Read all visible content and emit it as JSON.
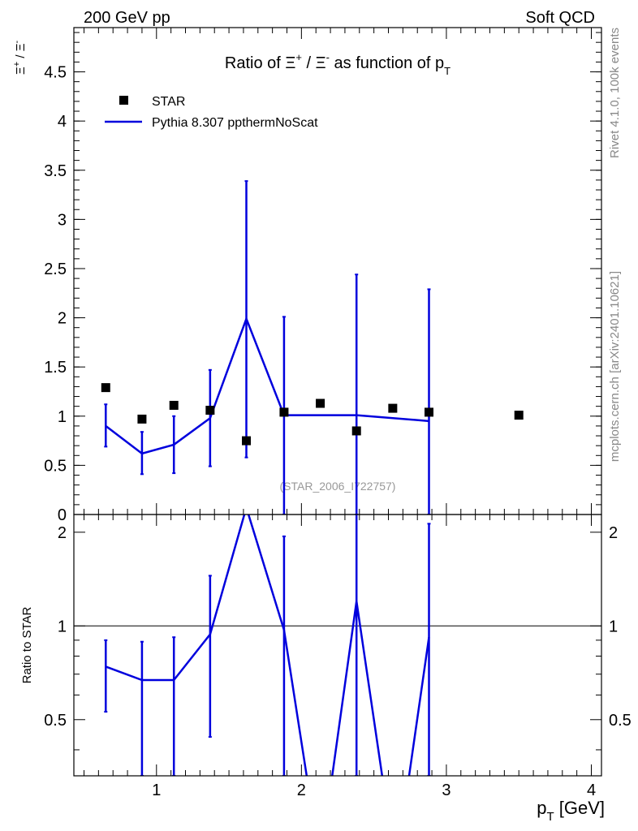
{
  "header": {
    "left": "200 GeV pp",
    "right": "Soft QCD"
  },
  "side_text": {
    "rivet": "Rivet 4.1.0,  100k events",
    "mcplots": "mcplots.cern.ch [arXiv:2401.10621]"
  },
  "chart_data": [
    {
      "type": "scatter",
      "panel": "main",
      "title": {
        "prefix": "Ratio of ",
        "xi1": "Ξ",
        "sup1": "+",
        "mid": " / ",
        "xi2": "Ξ",
        "sup2": "-",
        "suffix": " as function of p",
        "sub": "T"
      },
      "ylabel": {
        "xi1": "Ξ",
        "sup1": "+",
        "mid": " / ",
        "xi2": "Ξ",
        "sup2": "-"
      },
      "watermark": "(STAR_2006_I722757)",
      "xlim": [
        0.43,
        4.07
      ],
      "ylim": [
        0,
        4.95
      ],
      "yticks": [
        0,
        0.5,
        1,
        1.5,
        2,
        2.5,
        3,
        3.5,
        4,
        4.5
      ],
      "ytick_labels": [
        "0",
        "0.5",
        "1",
        "1.5",
        "2",
        "2.5",
        "3",
        "3.5",
        "4",
        "4.5"
      ],
      "legend": [
        {
          "key": "star",
          "label": "STAR",
          "marker": "square"
        },
        {
          "key": "pythia",
          "label": "Pythia 8.307 ppthermNoScat",
          "marker": "line"
        }
      ],
      "series": [
        {
          "name": "STAR",
          "color": "#000000",
          "x": [
            0.65,
            0.9,
            1.12,
            1.37,
            1.62,
            1.88,
            2.13,
            2.38,
            2.63,
            2.88,
            3.5
          ],
          "y": [
            1.29,
            0.97,
            1.11,
            1.06,
            0.75,
            1.04,
            1.13,
            0.85,
            1.08,
            1.04,
            1.01
          ]
        },
        {
          "name": "Pythia 8.307 ppthermNoScat",
          "color": "#0000dd",
          "x": [
            0.65,
            0.9,
            1.12,
            1.37,
            1.62,
            1.88,
            2.38,
            2.88
          ],
          "y": [
            0.9,
            0.62,
            0.71,
            0.98,
            1.99,
            1.01,
            1.01,
            0.95
          ],
          "err_low": [
            0.69,
            0.41,
            0.42,
            0.49,
            0.58,
            0.0,
            0.0,
            0.0
          ],
          "err_high": [
            1.12,
            0.84,
            1.0,
            1.47,
            3.39,
            2.01,
            2.44,
            2.29
          ]
        }
      ]
    },
    {
      "type": "line",
      "panel": "ratio",
      "ylabel": "Ratio to STAR",
      "xlabel": {
        "main": "p",
        "sub": "T",
        "unit": " [GeV]"
      },
      "ylim": [
        0.33,
        2.28
      ],
      "yscale": "log",
      "yticks": [
        0.5,
        1,
        2
      ],
      "ytick_labels": [
        "0.5",
        "1",
        "2"
      ],
      "xticks": [
        1,
        2,
        3,
        4
      ],
      "xtick_labels": [
        "1",
        "2",
        "3",
        "4"
      ],
      "reference_y": 1,
      "series": [
        {
          "name": "Pythia 8.307 ppthermNoScat / STAR",
          "color": "#0000dd",
          "x": [
            0.65,
            0.9,
            1.12,
            1.37,
            1.62,
            1.88,
            2.05,
            2.2,
            2.38,
            2.57,
            2.73,
            2.88
          ],
          "y": [
            0.74,
            0.67,
            0.67,
            0.94,
            2.4,
            0.97,
            0.3,
            0.3,
            1.2,
            0.3,
            0.3,
            0.92
          ],
          "err_x": [
            0.65,
            0.9,
            1.12,
            1.37,
            1.88,
            2.38,
            2.88
          ],
          "err_low": [
            0.53,
            0.33,
            0.33,
            0.44,
            0.33,
            0.33,
            0.33
          ],
          "err_high": [
            0.9,
            0.89,
            0.92,
            1.45,
            1.94,
            2.3,
            2.13
          ]
        }
      ]
    }
  ]
}
